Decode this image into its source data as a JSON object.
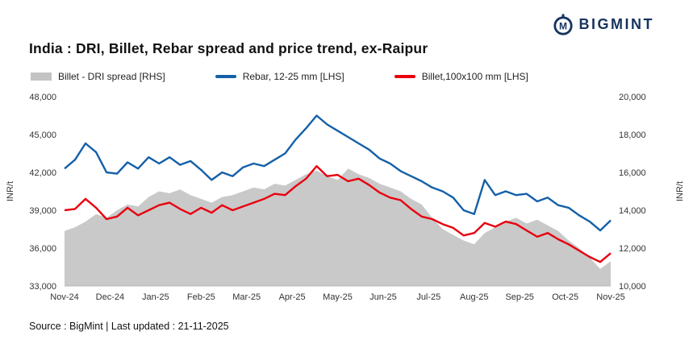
{
  "header": {
    "title": "India : DRI, Billet, Rebar spread and price trend, ex-Raipur",
    "logo_text": "BIGMINT",
    "logo_color": "#16335e"
  },
  "legend": [
    {
      "label": "Billet - DRI spread  [RHS]",
      "color": "#c3c3c3",
      "type": "area"
    },
    {
      "label": "Rebar, 12-25 mm [LHS]",
      "color": "#1560a8",
      "type": "line"
    },
    {
      "label": "Billet,100x100 mm [LHS]",
      "color": "#e8000e",
      "type": "line"
    }
  ],
  "footer": {
    "source": "Source : BigMint | Last updated : 21-11-2025"
  },
  "chart_data": {
    "type": "line+area",
    "title": "India : DRI, Billet, Rebar spread and price trend, ex-Raipur",
    "x_labels": [
      "Nov-24",
      "Dec-24",
      "Jan-25",
      "Feb-25",
      "Mar-25",
      "Apr-25",
      "May-25",
      "Jun-25",
      "Jul-25",
      "Aug-25",
      "Sep-25",
      "Oct-25",
      "Nov-25"
    ],
    "lhs": {
      "label": "INR/t",
      "ylim": [
        33000,
        48000
      ],
      "ticks": [
        33000,
        36000,
        39000,
        42000,
        45000,
        48000
      ]
    },
    "rhs": {
      "label": "INR/t",
      "ylim": [
        10000,
        20000
      ],
      "ticks": [
        10000,
        12000,
        14000,
        16000,
        18000,
        20000
      ]
    },
    "grid": false,
    "legend_position": "top",
    "series": [
      {
        "id": "billet-dri-spread",
        "name": "Billet - DRI spread [RHS]",
        "axis": "rhs",
        "type": "area",
        "color": "#c9c9c9",
        "values": [
          12900,
          13100,
          13400,
          13800,
          13600,
          14000,
          14300,
          14200,
          14700,
          15000,
          14900,
          15100,
          14800,
          14600,
          14400,
          14700,
          14800,
          15000,
          15200,
          15100,
          15400,
          15300,
          15600,
          15900,
          16100,
          15800,
          15600,
          16200,
          15900,
          15700,
          15400,
          15200,
          15000,
          14600,
          14300,
          13600,
          13000,
          12700,
          12400,
          12200,
          12800,
          13100,
          13400,
          13600,
          13300,
          13500,
          13200,
          12900,
          12400,
          12000,
          11500,
          10900,
          11300
        ]
      },
      {
        "id": "rebar-12-25",
        "name": "Rebar, 12-25 mm [LHS]",
        "axis": "lhs",
        "type": "line",
        "color": "#1560a8",
        "values": [
          42300,
          43000,
          44300,
          43600,
          42000,
          41900,
          42800,
          42300,
          43200,
          42700,
          43200,
          42600,
          42900,
          42200,
          41400,
          42000,
          41700,
          42400,
          42700,
          42500,
          43000,
          43500,
          44600,
          45500,
          46500,
          45800,
          45300,
          44800,
          44300,
          43800,
          43100,
          42700,
          42100,
          41700,
          41300,
          40800,
          40500,
          40000,
          39000,
          38700,
          41400,
          40200,
          40500,
          40200,
          40300,
          39700,
          40000,
          39400,
          39200,
          38600,
          38100,
          37400,
          38200
        ]
      },
      {
        "id": "billet-100x100",
        "name": "Billet,100x100 mm [LHS]",
        "axis": "lhs",
        "type": "line",
        "color": "#e8000e",
        "values": [
          39000,
          39100,
          39900,
          39200,
          38300,
          38500,
          39200,
          38600,
          39000,
          39400,
          39600,
          39100,
          38700,
          39200,
          38800,
          39400,
          39000,
          39300,
          39600,
          39900,
          40300,
          40200,
          40900,
          41500,
          42500,
          41700,
          41800,
          41300,
          41500,
          41000,
          40400,
          40000,
          39800,
          39100,
          38500,
          38300,
          37900,
          37600,
          37000,
          37200,
          38000,
          37700,
          38100,
          37900,
          37400,
          36900,
          37200,
          36700,
          36300,
          35800,
          35300,
          34900,
          35600
        ]
      }
    ]
  }
}
